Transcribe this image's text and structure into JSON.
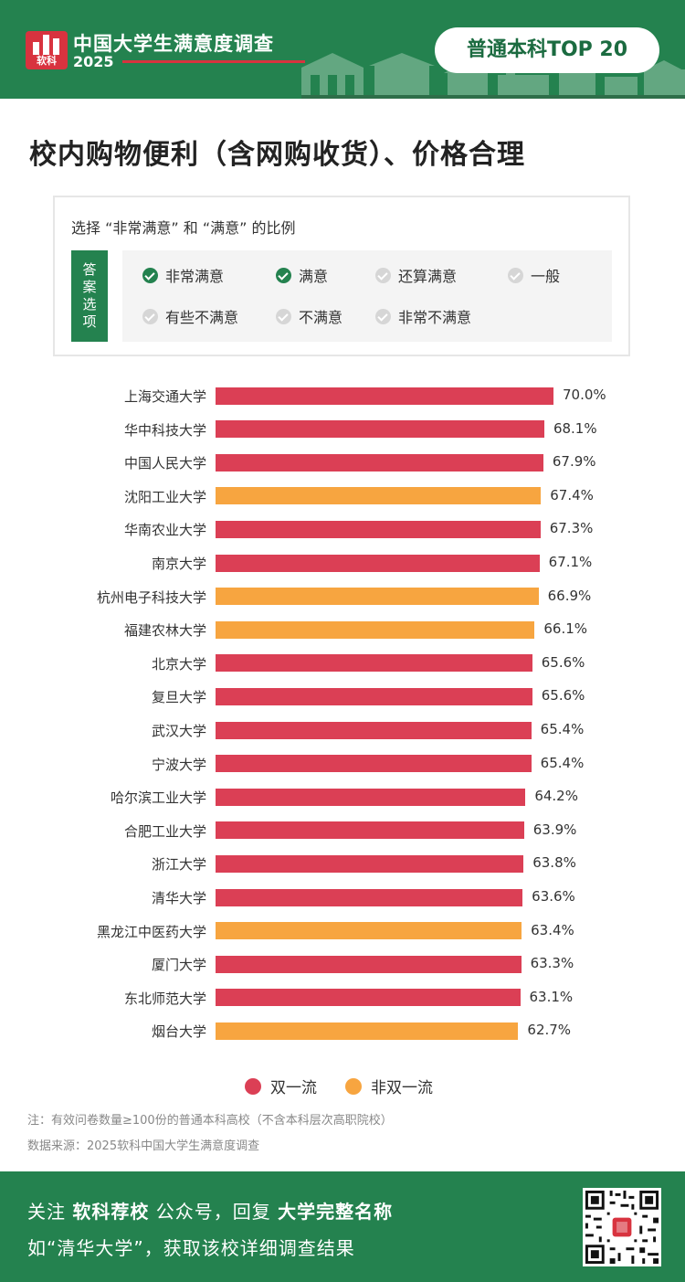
{
  "header": {
    "logo_text": "软科",
    "survey_title": "中国大学生满意度调查",
    "survey_year": "2025",
    "badge": "普通本科TOP 20",
    "colors": {
      "header_bg": "#24824f",
      "accent_red": "#d8333f"
    }
  },
  "main_title": "校内购物便利（含网购收货）、价格合理",
  "legend_box": {
    "question": "选择 “非常满意” 和 “满意” 的比例",
    "answer_tag": "答案选项",
    "options": [
      {
        "label": "非常满意",
        "checked": true
      },
      {
        "label": "满意",
        "checked": true
      },
      {
        "label": "还算满意",
        "checked": false
      },
      {
        "label": "一般",
        "checked": false
      },
      {
        "label": "有些不满意",
        "checked": false
      },
      {
        "label": "不满意",
        "checked": false
      },
      {
        "label": "非常不满意",
        "checked": false
      }
    ]
  },
  "chart_data": {
    "type": "bar",
    "orientation": "horizontal",
    "categories": [
      "上海交通大学",
      "华中科技大学",
      "中国人民大学",
      "沈阳工业大学",
      "华南农业大学",
      "南京大学",
      "杭州电子科技大学",
      "福建农林大学",
      "北京大学",
      "复旦大学",
      "武汉大学",
      "宁波大学",
      "哈尔滨工业大学",
      "合肥工业大学",
      "浙江大学",
      "清华大学",
      "黑龙江中医药大学",
      "厦门大学",
      "东北师范大学",
      "烟台大学"
    ],
    "values": [
      70.0,
      68.1,
      67.9,
      67.4,
      67.3,
      67.1,
      66.9,
      66.1,
      65.6,
      65.6,
      65.4,
      65.4,
      64.2,
      63.9,
      63.8,
      63.6,
      63.4,
      63.3,
      63.1,
      62.7
    ],
    "value_labels": [
      "70.0%",
      "68.1%",
      "67.9%",
      "67.4%",
      "67.3%",
      "67.1%",
      "66.9%",
      "66.1%",
      "65.6%",
      "65.6%",
      "65.4%",
      "65.4%",
      "64.2%",
      "63.9%",
      "63.8%",
      "63.6%",
      "63.4%",
      "63.3%",
      "63.1%",
      "62.7%"
    ],
    "groups": [
      "双一流",
      "双一流",
      "双一流",
      "非双一流",
      "双一流",
      "双一流",
      "非双一流",
      "非双一流",
      "双一流",
      "双一流",
      "双一流",
      "双一流",
      "双一流",
      "双一流",
      "双一流",
      "双一流",
      "非双一流",
      "双一流",
      "双一流",
      "非双一流"
    ],
    "unit": "%",
    "legend": [
      {
        "name": "双一流",
        "color": "#db3f55"
      },
      {
        "name": "非双一流",
        "color": "#f7a540"
      }
    ],
    "legend_placement": "bottom",
    "grid": false
  },
  "notes": {
    "note1": "注：有效问卷数量≥100份的普通本科高校（不含本科层次高职院校）",
    "note2": "数据来源：2025软科中国大学生满意度调查"
  },
  "footer": {
    "line1_a": "关注",
    "line1_b": "软科荐校",
    "line1_c": "公众号，回复",
    "line1_d": "大学完整名称",
    "line2": "如“清华大学”，获取该校详细调查结果",
    "qr_icon": "qr-code-icon"
  }
}
